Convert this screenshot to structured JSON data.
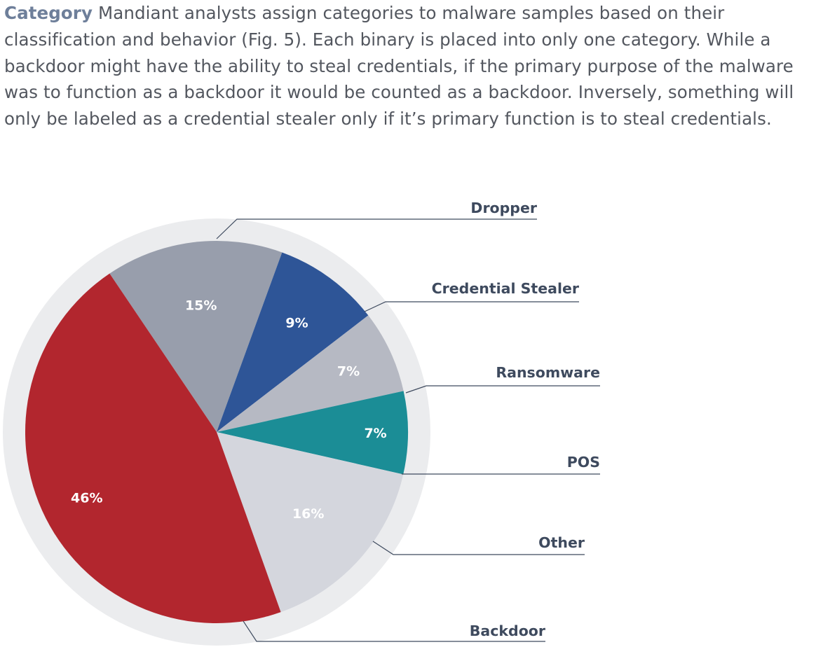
{
  "paragraph": {
    "lead": "Category",
    "body": " Mandiant analysts assign categories to malware samples based on their classification and behavior (Fig. 5). Each binary is placed into only one category. While a backdoor might have the ability to steal credentials, if the primary purpose of the malware was to function as a backdoor it would be counted as a backdoor. Inversely, something will only be labeled as a credential stealer only if it’s primary function is to steal credentials."
  },
  "chart_data": {
    "type": "pie",
    "title": "",
    "slices": [
      {
        "name": "Dropper",
        "value": 15,
        "label": "15%",
        "color": "#989eac"
      },
      {
        "name": "Credential Stealer",
        "value": 9,
        "label": "9%",
        "color": "#2e5597"
      },
      {
        "name": "Ransomware",
        "value": 7,
        "label": "7%",
        "color": "#b6b9c3"
      },
      {
        "name": "POS",
        "value": 7,
        "label": "7%",
        "color": "#1b8d96"
      },
      {
        "name": "Other",
        "value": 16,
        "label": "16%",
        "color": "#d4d6dd"
      },
      {
        "name": "Backdoor",
        "value": 46,
        "label": "46%",
        "color": "#b2262e"
      }
    ],
    "ring_color": "#ebecee",
    "leader_color": "#3e4a5e",
    "legend": "callout labels with leader lines on the right"
  }
}
